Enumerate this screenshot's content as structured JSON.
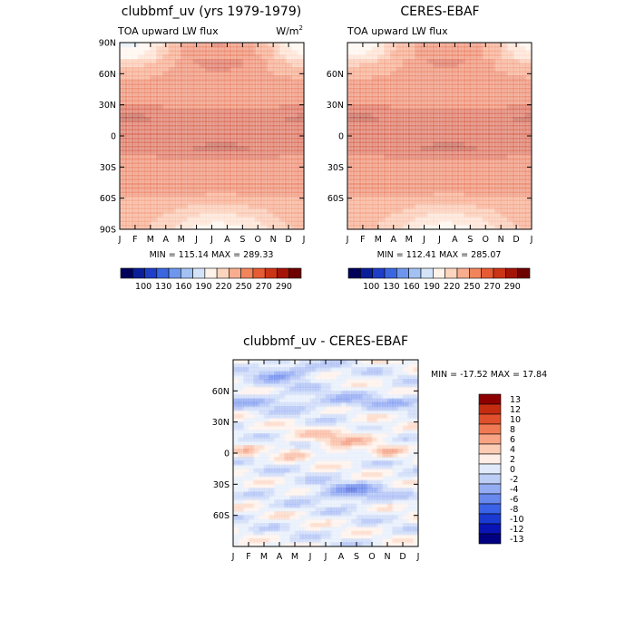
{
  "chart_data": [
    {
      "type": "heatmap",
      "title": "clubbmf_uv (yrs 1979-1979)",
      "subtitle": "TOA upward LW flux",
      "units_base": "W/m",
      "units_sup": "2",
      "x_labels": [
        "J",
        "F",
        "M",
        "A",
        "M",
        "J",
        "J",
        "A",
        "S",
        "O",
        "N",
        "D",
        "J"
      ],
      "y_labels": [
        "90N",
        "60N",
        "30N",
        "0",
        "30S",
        "60S",
        "90S"
      ],
      "stats": "MIN = 115.14  MAX = 289.33",
      "min": 115.14,
      "max": 289.33,
      "colorbar_labels": [
        "100",
        "130",
        "160",
        "190",
        "220",
        "250",
        "270",
        "290"
      ]
    },
    {
      "type": "heatmap",
      "title": "CERES-EBAF",
      "subtitle": "TOA upward LW flux",
      "x_labels": [
        "J",
        "F",
        "M",
        "A",
        "M",
        "J",
        "J",
        "A",
        "S",
        "O",
        "N",
        "D",
        "J"
      ],
      "y_labels": [
        "90N",
        "60N",
        "30N",
        "0",
        "30S",
        "60S",
        "90S"
      ],
      "stats": "MIN = 112.41  MAX = 285.07",
      "min": 112.41,
      "max": 285.07,
      "colorbar_labels": [
        "100",
        "130",
        "160",
        "190",
        "220",
        "250",
        "270",
        "290"
      ]
    },
    {
      "type": "heatmap",
      "title": "clubbmf_uv - CERES-EBAF",
      "x_labels": [
        "J",
        "F",
        "M",
        "A",
        "M",
        "J",
        "J",
        "A",
        "S",
        "O",
        "N",
        "D",
        "J"
      ],
      "y_labels": [
        "60N",
        "30N",
        "0",
        "30S",
        "60S"
      ],
      "stats": "MIN = -17.52 MAX =  17.84",
      "min": -17.52,
      "max": 17.84,
      "legend_labels": [
        "13",
        "12",
        "10",
        "8",
        "6",
        "4",
        "2",
        "0",
        "-2",
        "-4",
        "-6",
        "-8",
        "-10",
        "-12",
        "-13"
      ]
    }
  ],
  "colors": {
    "abs_scale": [
      "#00005a",
      "#0a1e9a",
      "#1e3ec8",
      "#3a66e0",
      "#6e96ec",
      "#a3c1f2",
      "#d3e3f8",
      "#fff2e8",
      "#fdd4be",
      "#f8ae8e",
      "#f2845c",
      "#e65b34",
      "#cc3416",
      "#a41406",
      "#6e0000"
    ],
    "diff_scale": [
      "#000080",
      "#0a14b4",
      "#1a3ad2",
      "#3a62e6",
      "#6888ee",
      "#94acf2",
      "#bccef6",
      "#e0eafa",
      "#ffeee6",
      "#fcccb4",
      "#f8a484",
      "#f07a54",
      "#e0502c",
      "#c42c10",
      "#8c0000"
    ]
  }
}
